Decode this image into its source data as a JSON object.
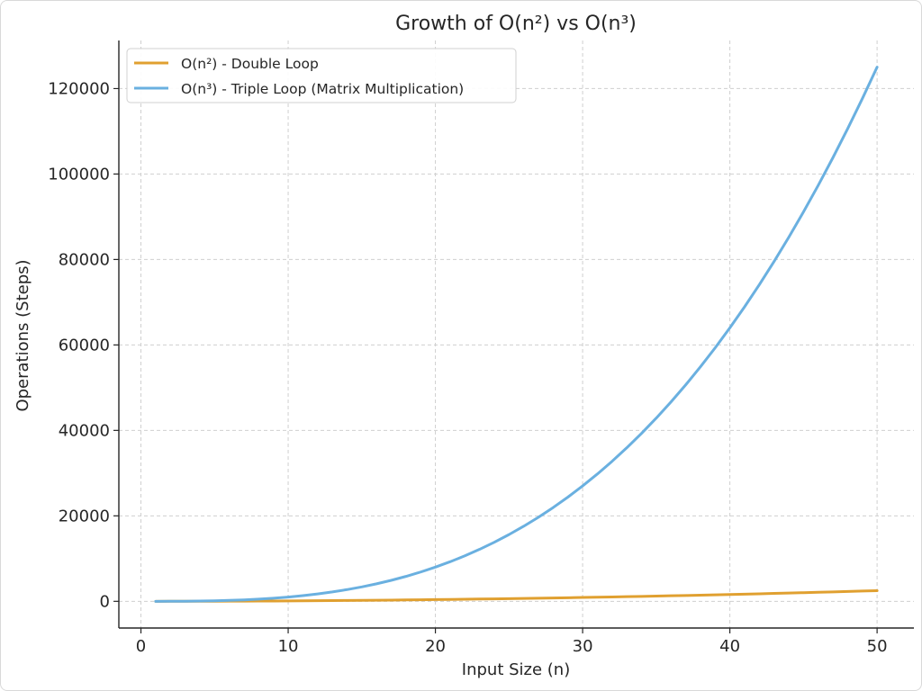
{
  "chart_data": {
    "type": "line",
    "title": "Growth of O(n²) vs O(n³)",
    "xlabel": "Input Size (n)",
    "ylabel": "Operations (Steps)",
    "xlim": [
      -1.5,
      52.5
    ],
    "ylim": [
      -6248,
      131248
    ],
    "x_ticks": [
      0,
      10,
      20,
      30,
      40,
      50
    ],
    "x_tick_labels": [
      "0",
      "10",
      "20",
      "30",
      "40",
      "50"
    ],
    "y_ticks": [
      0,
      20000,
      40000,
      60000,
      80000,
      100000,
      120000
    ],
    "y_tick_labels": [
      "0",
      "20000",
      "40000",
      "60000",
      "80000",
      "100000",
      "120000"
    ],
    "grid": true,
    "legend_position": "top-left",
    "x": [
      1,
      2,
      3,
      4,
      5,
      6,
      7,
      8,
      9,
      10,
      11,
      12,
      13,
      14,
      15,
      16,
      17,
      18,
      19,
      20,
      21,
      22,
      23,
      24,
      25,
      26,
      27,
      28,
      29,
      30,
      31,
      32,
      33,
      34,
      35,
      36,
      37,
      38,
      39,
      40,
      41,
      42,
      43,
      44,
      45,
      46,
      47,
      48,
      49,
      50
    ],
    "series": [
      {
        "name": "O(n²) - Double Loop",
        "color": "#e0a030",
        "values": [
          1,
          4,
          9,
          16,
          25,
          36,
          49,
          64,
          81,
          100,
          121,
          144,
          169,
          196,
          225,
          256,
          289,
          324,
          361,
          400,
          441,
          484,
          529,
          576,
          625,
          676,
          729,
          784,
          841,
          900,
          961,
          1024,
          1089,
          1156,
          1225,
          1296,
          1369,
          1444,
          1521,
          1600,
          1681,
          1764,
          1849,
          1936,
          2025,
          2116,
          2209,
          2304,
          2401,
          2500
        ]
      },
      {
        "name": "O(n³) - Triple Loop (Matrix Multiplication)",
        "color": "#6ab0e0",
        "values": [
          1,
          8,
          27,
          64,
          125,
          216,
          343,
          512,
          729,
          1000,
          1331,
          1728,
          2197,
          2744,
          3375,
          4096,
          4913,
          5832,
          6859,
          8000,
          9261,
          10648,
          12167,
          13824,
          15625,
          17576,
          19683,
          21952,
          24389,
          27000,
          29791,
          32768,
          35937,
          39304,
          42875,
          46656,
          50653,
          54872,
          59319,
          64000,
          68921,
          74088,
          79507,
          85184,
          91125,
          97336,
          103823,
          110592,
          117649,
          125000
        ]
      }
    ]
  }
}
